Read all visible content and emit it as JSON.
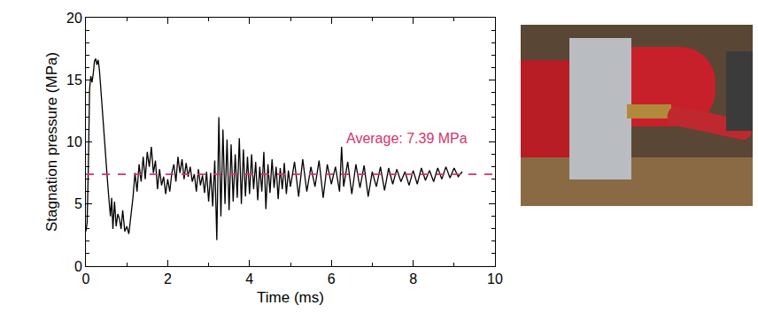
{
  "chart_data": {
    "type": "line",
    "x_label": "Time (ms)",
    "y_label": "Stagnation pressure (MPa)",
    "xlim": [
      0,
      10
    ],
    "xticks": [
      0,
      2,
      4,
      6,
      8,
      10
    ],
    "ylim": [
      0,
      20
    ],
    "yticks": [
      0,
      5,
      10,
      15,
      20
    ],
    "grid": false,
    "series": [
      {
        "color": "#000000",
        "x": [
          0,
          0.03,
          0.06,
          0.09,
          0.12,
          0.15,
          0.18,
          0.21,
          0.24,
          0.27,
          0.3,
          0.33,
          0.36,
          0.4,
          0.44,
          0.48,
          0.52,
          0.56,
          0.6,
          0.63,
          0.66,
          0.7,
          0.74,
          0.78,
          0.82,
          0.86,
          0.9,
          0.95,
          1.0,
          1.05,
          1.1,
          1.15,
          1.2,
          1.25,
          1.3,
          1.35,
          1.4,
          1.45,
          1.5,
          1.55,
          1.6,
          1.65,
          1.7,
          1.75,
          1.8,
          1.85,
          1.9,
          1.95,
          2.0,
          2.05,
          2.1,
          2.15,
          2.2,
          2.25,
          2.3,
          2.35,
          2.4,
          2.45,
          2.5,
          2.55,
          2.6,
          2.65,
          2.7,
          2.75,
          2.8,
          2.85,
          2.9,
          2.95,
          3.0,
          3.05,
          3.1,
          3.15,
          3.2,
          3.25,
          3.3,
          3.35,
          3.4,
          3.45,
          3.5,
          3.55,
          3.6,
          3.65,
          3.7,
          3.75,
          3.8,
          3.85,
          3.9,
          3.95,
          4.0,
          4.05,
          4.1,
          4.15,
          4.2,
          4.25,
          4.3,
          4.35,
          4.4,
          4.45,
          4.5,
          4.55,
          4.6,
          4.65,
          4.7,
          4.75,
          4.8,
          4.85,
          4.9,
          4.95,
          5.0,
          5.1,
          5.2,
          5.3,
          5.4,
          5.5,
          5.6,
          5.7,
          5.8,
          5.9,
          6.0,
          6.1,
          6.2,
          6.25,
          6.3,
          6.4,
          6.5,
          6.6,
          6.7,
          6.8,
          6.9,
          7.0,
          7.1,
          7.2,
          7.3,
          7.4,
          7.5,
          7.6,
          7.7,
          7.8,
          7.9,
          8.0,
          8.1,
          8.2,
          8.3,
          8.4,
          8.5,
          8.6,
          8.7,
          8.8,
          8.9,
          9.0,
          9.1,
          9.2
        ],
        "values": [
          2.8,
          3.5,
          8.0,
          14.2,
          15.3,
          14.8,
          15.5,
          16.5,
          16.7,
          16.2,
          16.6,
          15.8,
          14.5,
          12.5,
          10.5,
          9.0,
          7.2,
          5.5,
          4.0,
          5.5,
          3.0,
          5.2,
          3.2,
          4.2,
          3.8,
          3.0,
          4.5,
          2.8,
          3.2,
          2.6,
          4.0,
          5.5,
          7.5,
          6.0,
          8.2,
          6.8,
          8.8,
          7.0,
          9.2,
          8.0,
          9.6,
          7.5,
          8.5,
          6.2,
          7.8,
          6.5,
          7.2,
          5.8,
          7.0,
          6.0,
          7.5,
          8.2,
          6.8,
          8.8,
          7.5,
          8.6,
          7.0,
          8.3,
          7.2,
          8.0,
          6.8,
          7.4,
          6.0,
          7.8,
          6.5,
          7.3,
          5.9,
          7.6,
          5.2,
          7.5,
          4.8,
          8.5,
          2.1,
          12.0,
          4.0,
          11.0,
          5.0,
          10.2,
          4.5,
          9.8,
          5.2,
          9.0,
          5.5,
          10.3,
          5.0,
          9.4,
          5.6,
          8.8,
          5.8,
          9.0,
          6.2,
          8.4,
          5.3,
          8.0,
          6.0,
          9.2,
          4.6,
          8.2,
          5.9,
          8.6,
          6.3,
          8.0,
          5.4,
          7.9,
          6.2,
          8.3,
          5.8,
          7.7,
          6.4,
          8.4,
          5.6,
          8.6,
          6.0,
          8.0,
          6.4,
          8.5,
          5.5,
          8.2,
          6.6,
          8.0,
          6.0,
          9.6,
          6.4,
          8.4,
          5.8,
          8.2,
          6.3,
          8.1,
          5.6,
          7.6,
          6.4,
          8.0,
          6.1,
          7.9,
          6.6,
          7.8,
          6.8,
          7.6,
          6.5,
          7.7,
          6.6,
          7.9,
          6.9,
          7.7,
          6.8,
          7.9,
          7.0,
          8.0,
          7.1,
          7.9,
          7.2,
          7.6
        ]
      }
    ],
    "average": {
      "value": 7.39,
      "color": "#d6336c",
      "line_style": "dashed",
      "label": "Average: 7.39 MPa"
    }
  }
}
